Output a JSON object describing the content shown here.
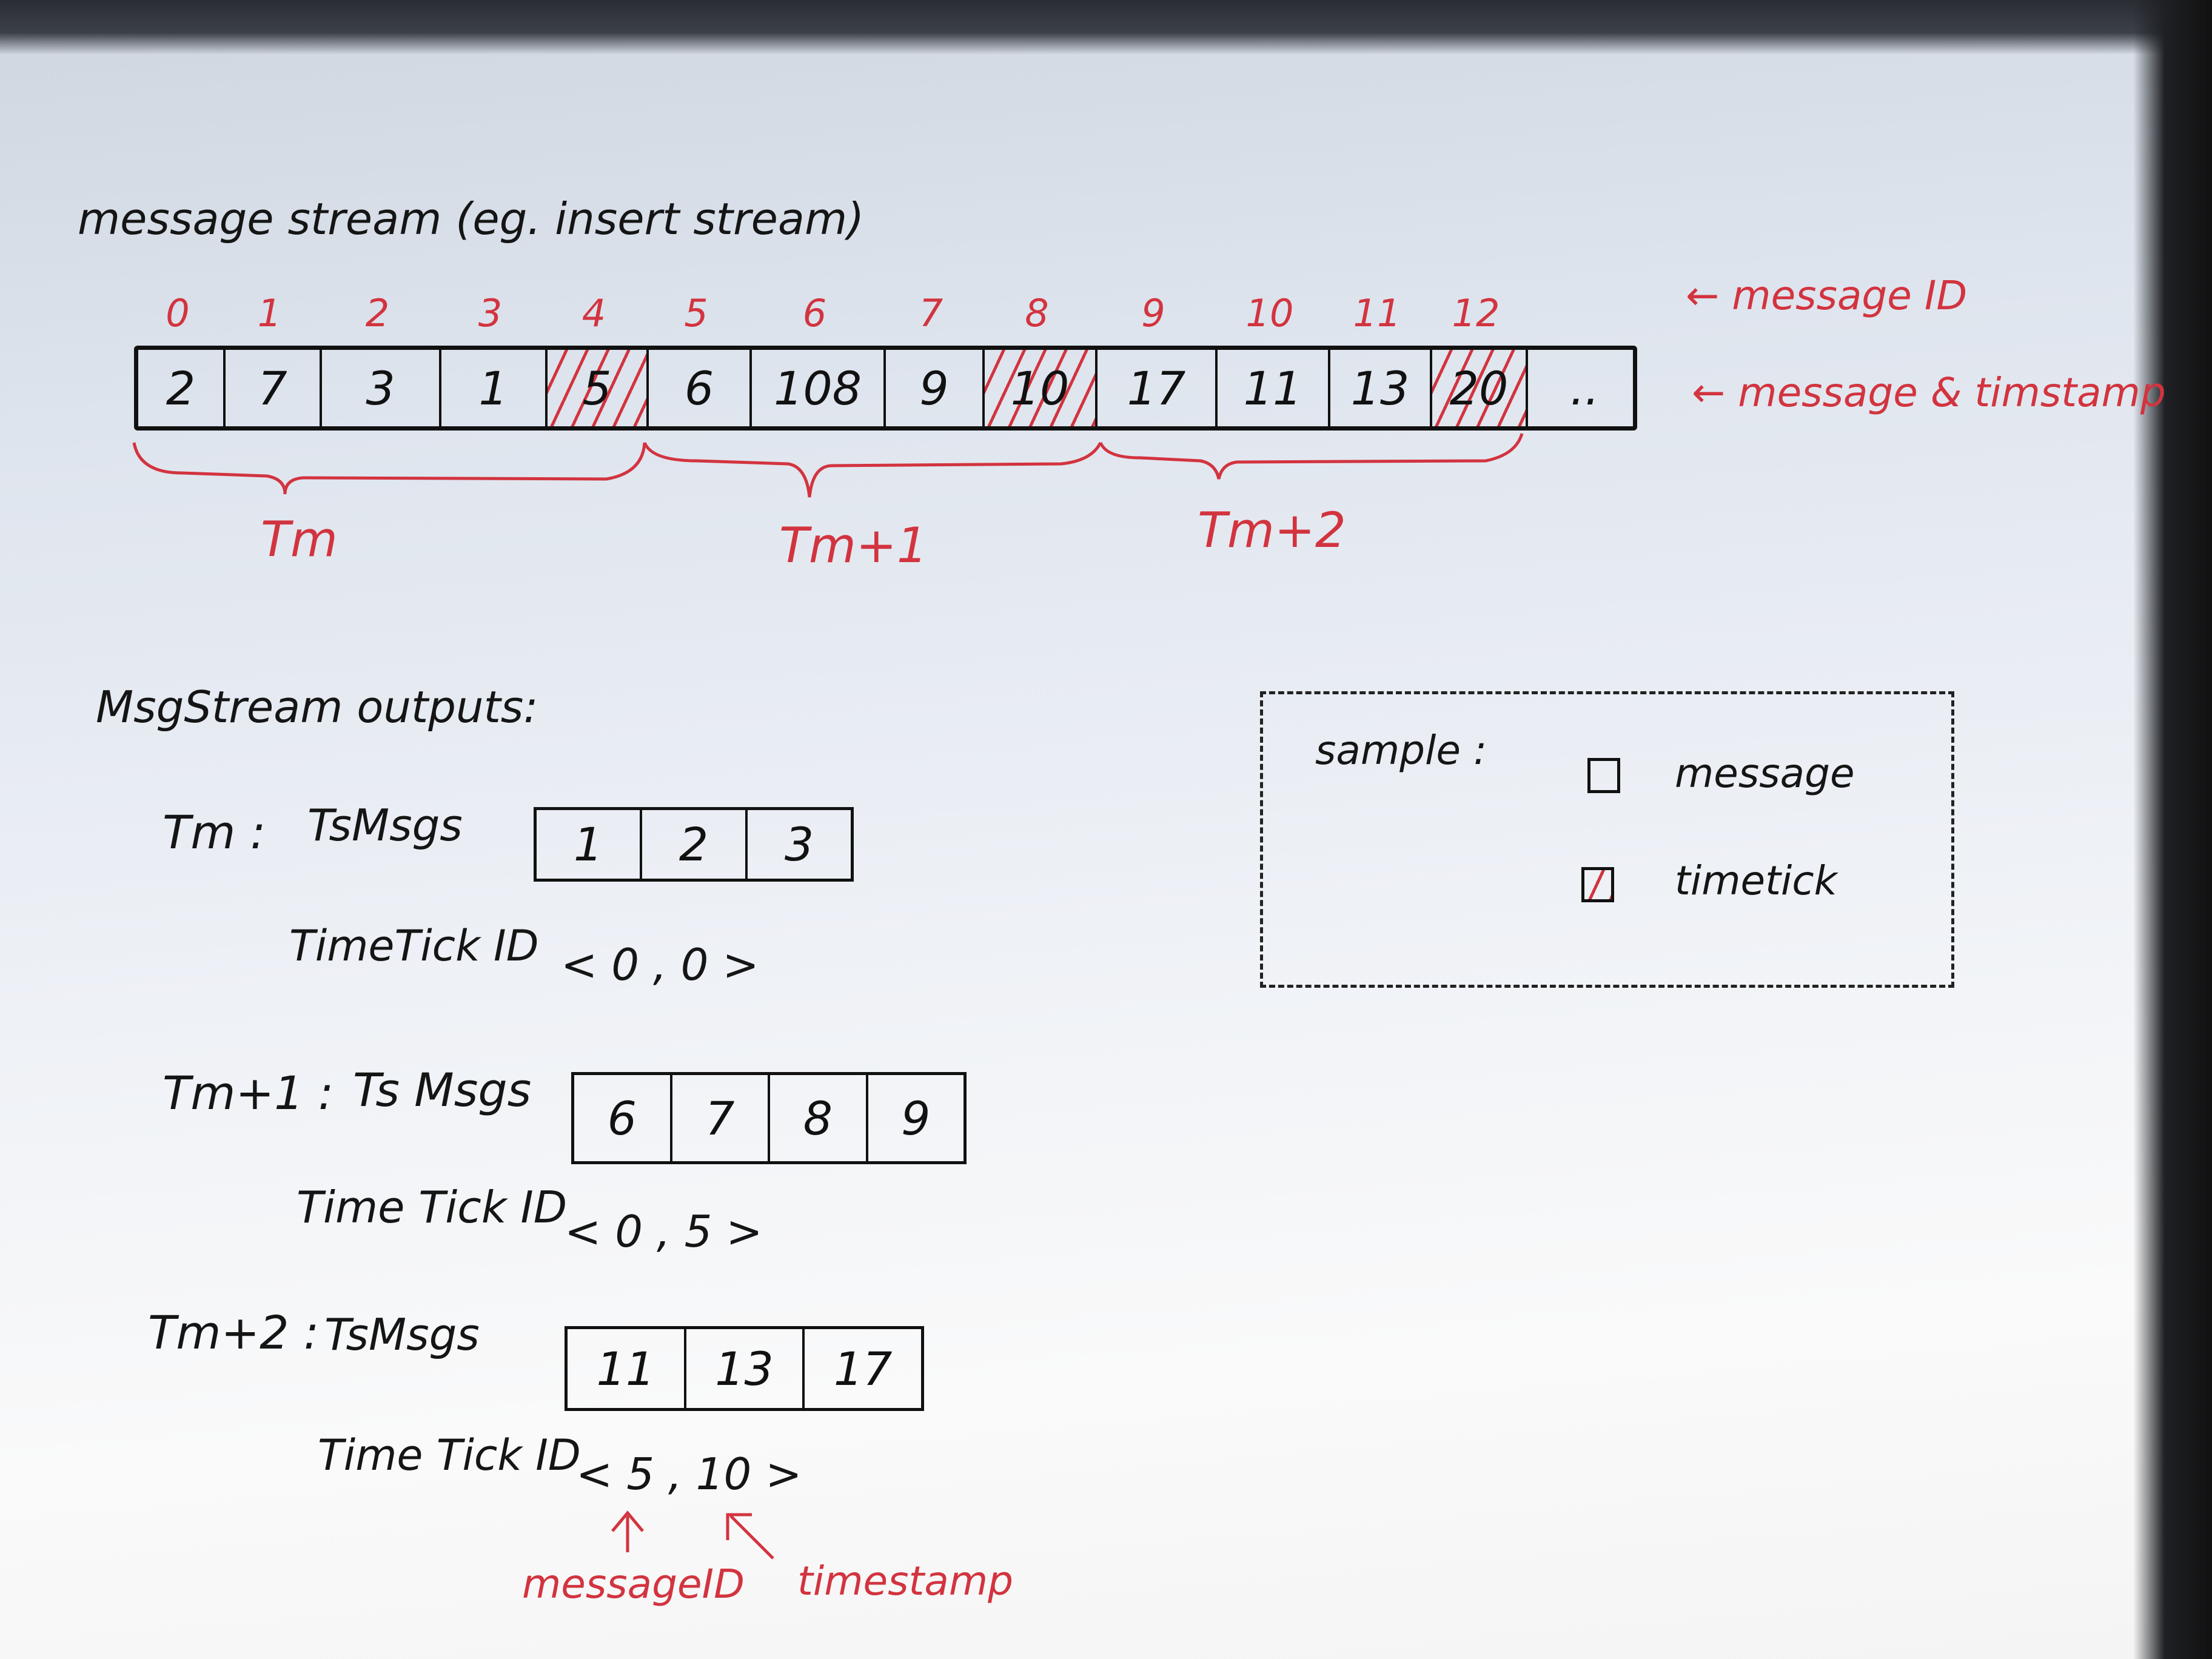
{
  "title": "message stream (eg. insert stream)",
  "stream": {
    "message_ids": [
      "0",
      "1",
      "2",
      "3",
      "4",
      "5",
      "6",
      "7",
      "8",
      "9",
      "10",
      "11",
      "12"
    ],
    "timestamps": [
      "2",
      "7",
      "3",
      "1",
      "5",
      "6",
      "108",
      "9",
      "10",
      "17",
      "11",
      "13",
      "20",
      ".."
    ],
    "timetick_indices": [
      4,
      8,
      12
    ],
    "id_annotation": "← message ID",
    "ts_annotation": "← message & timstamp"
  },
  "periods": [
    {
      "label": "Tm"
    },
    {
      "label": "Tm+1"
    },
    {
      "label": "Tm+2"
    }
  ],
  "outputs": {
    "heading": "MsgStream outputs:",
    "rows": [
      {
        "period": "Tm :",
        "msgs_label": "TsMsgs",
        "msgs": [
          "1",
          "2",
          "3"
        ],
        "tt_label": "TimeTick ID",
        "tt_value": "< 0 , 0 >"
      },
      {
        "period": "Tm+1 :",
        "msgs_label": "Ts Msgs",
        "msgs": [
          "6",
          "7",
          "8",
          "9"
        ],
        "tt_label": "Time Tick ID",
        "tt_value": "< 0 , 5 >"
      },
      {
        "period": "Tm+2 :",
        "msgs_label": "TsMsgs",
        "msgs": [
          "11",
          "13",
          "17"
        ],
        "tt_label": "Time Tick ID",
        "tt_value": "< 5 , 10 >"
      }
    ],
    "annot_message_id": "messageID",
    "annot_timestamp": "timestamp"
  },
  "legend": {
    "title": "sample :",
    "message": "message",
    "timetick": "timetick"
  },
  "colors": {
    "ink": "#151515",
    "red_pen": "#d2343f"
  }
}
